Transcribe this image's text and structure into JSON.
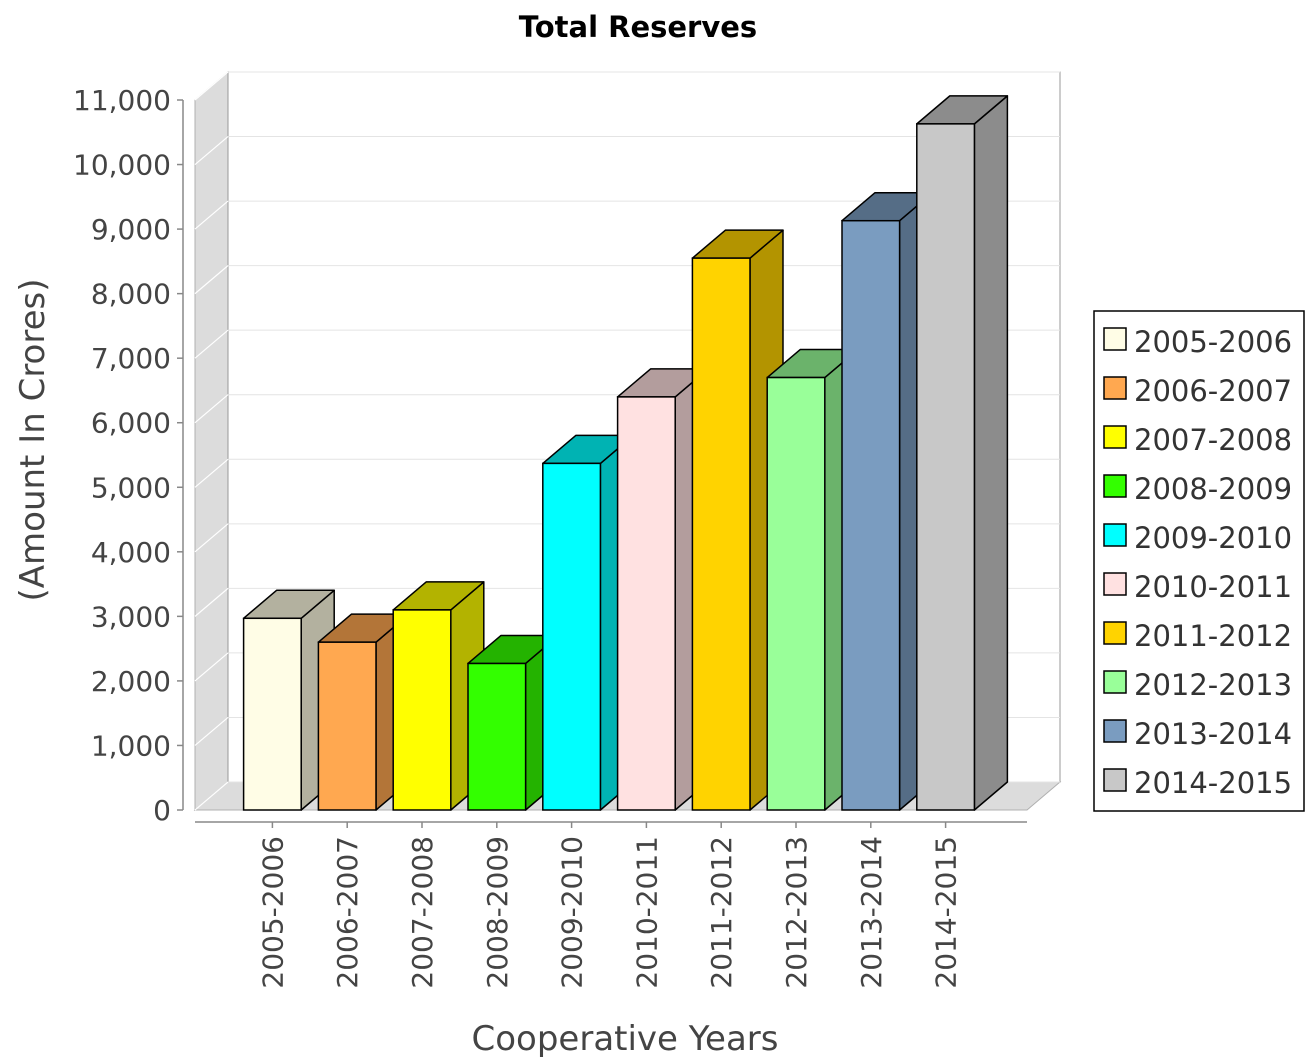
{
  "chart_data": {
    "type": "bar",
    "title": "Total Reserves",
    "xlabel": "Cooperative Years",
    "ylabel": "(Amount In Crores)",
    "ylim": [
      0,
      11000
    ],
    "yticks": [
      0,
      1000,
      2000,
      3000,
      4000,
      5000,
      6000,
      7000,
      8000,
      9000,
      10000,
      11000
    ],
    "ytick_labels": [
      "0",
      "1,000",
      "2,000",
      "3,000",
      "4,000",
      "5,000",
      "6,000",
      "7,000",
      "8,000",
      "9,000",
      "10,000",
      "11,000"
    ],
    "categories": [
      "2005-2006",
      "2006-2007",
      "2007-2008",
      "2008-2009",
      "2009-2010",
      "2010-2011",
      "2011-2012",
      "2012-2013",
      "2013-2014",
      "2014-2015"
    ],
    "values": [
      2970,
      2600,
      3100,
      2270,
      5370,
      6400,
      8550,
      6700,
      9130,
      10630
    ],
    "colors": [
      "#FFFDE6",
      "#FFA850",
      "#FFFF00",
      "#33FF00",
      "#00FFFF",
      "#FFE1E1",
      "#FFD300",
      "#99FF99",
      "#7A9CC0",
      "#C8C8C8"
    ],
    "side_colors": [
      "#B3B19F",
      "#B37538",
      "#B3B300",
      "#24B300",
      "#00B3B3",
      "#B39D9D",
      "#B39400",
      "#6BB36B",
      "#556D86",
      "#8C8C8C"
    ],
    "legend": {
      "position": "right",
      "entries": [
        "2005-2006",
        "2006-2007",
        "2007-2008",
        "2008-2009",
        "2009-2010",
        "2010-2011",
        "2011-2012",
        "2012-2013",
        "2013-2014",
        "2014-2015"
      ]
    },
    "grid": true,
    "style": "3d"
  }
}
